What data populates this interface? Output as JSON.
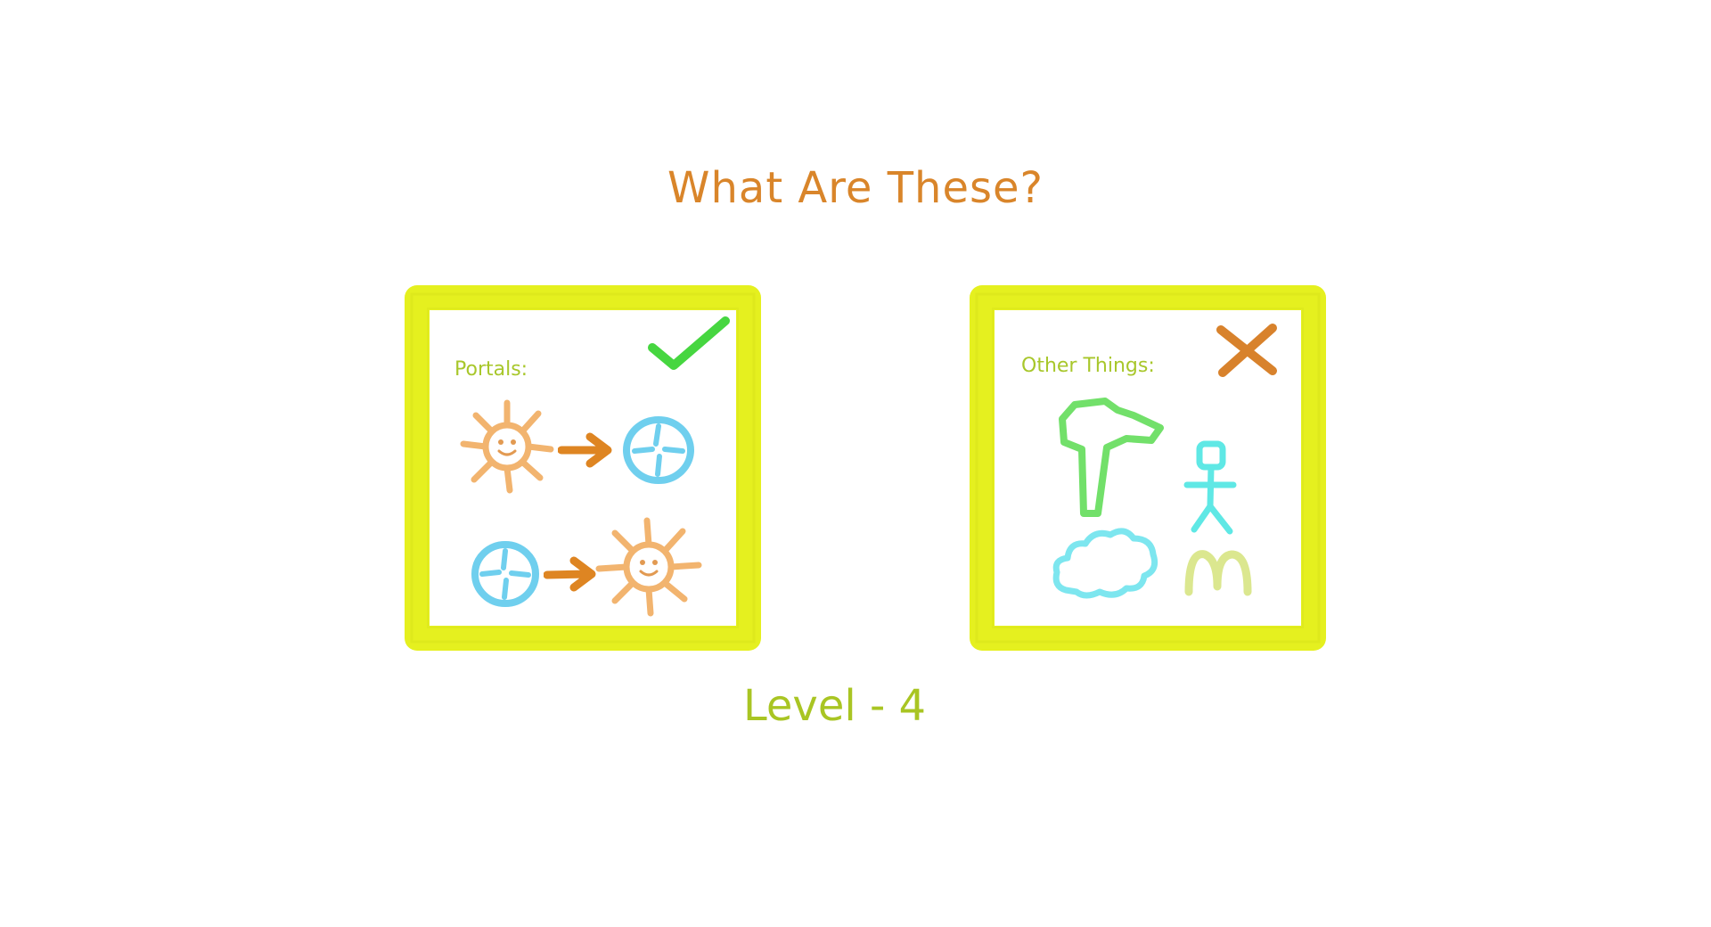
{
  "title": "What Are These?",
  "left_panel": {
    "label": "Portals:",
    "mark": "check-icon",
    "icons": [
      "sun-face-icon",
      "arrow-right-icon",
      "portal-orb-icon",
      "portal-orb-icon",
      "arrow-right-icon",
      "sun-face-icon"
    ]
  },
  "right_panel": {
    "label": "Other Things:",
    "mark": "cross-icon",
    "icons": [
      "tree-icon",
      "stick-figure-icon",
      "cloud-icon",
      "m-letter-icon"
    ]
  },
  "level": "Level - 4",
  "colors": {
    "frame": "#e5f01f",
    "title": "#d9852a",
    "label": "#a8c72b",
    "sun": "#f2b46f",
    "arrow": "#de8522",
    "portal": "#6fcfee",
    "check": "#46d640",
    "cross": "#d8822c",
    "tree": "#72e06a",
    "figure": "#5fe8e5",
    "cloud": "#7de6ef",
    "m_letter": "#dbe78f"
  }
}
